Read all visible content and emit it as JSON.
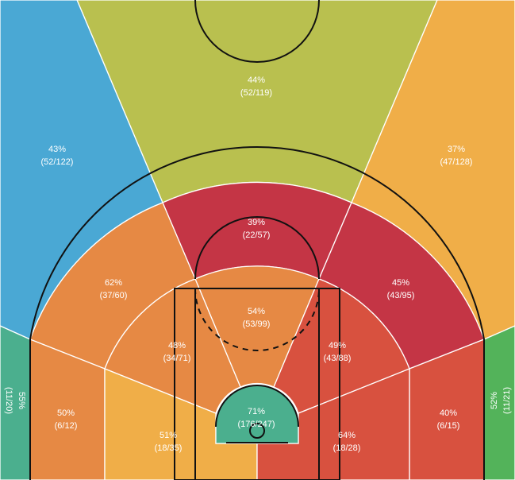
{
  "chart_data": {
    "type": "heatmap",
    "title": "",
    "zones": [
      {
        "id": "top-key",
        "pct": "44%",
        "made": 52,
        "att": 119,
        "frac": "(52/119)",
        "color": "#b9c04f"
      },
      {
        "id": "top-left-wing",
        "pct": "43%",
        "made": 52,
        "att": 122,
        "frac": "(52/122)",
        "color": "#4aa8d4"
      },
      {
        "id": "top-right-wing",
        "pct": "37%",
        "made": 47,
        "att": 128,
        "frac": "(47/128)",
        "color": "#f0ae48"
      },
      {
        "id": "left-corner-three",
        "pct": "55%",
        "made": 11,
        "att": 20,
        "frac": "(11/20)",
        "color": "#4baf8e"
      },
      {
        "id": "right-corner-three",
        "pct": "52%",
        "made": 11,
        "att": 21,
        "frac": "(11/21)",
        "color": "#53b35a"
      },
      {
        "id": "mid-top",
        "pct": "39%",
        "made": 22,
        "att": 57,
        "frac": "(22/57)",
        "color": "#c43545"
      },
      {
        "id": "mid-left-wing",
        "pct": "62%",
        "made": 37,
        "att": 60,
        "frac": "(37/60)",
        "color": "#e68944"
      },
      {
        "id": "mid-right-wing",
        "pct": "45%",
        "made": 43,
        "att": 95,
        "frac": "(43/95)",
        "color": "#c43545"
      },
      {
        "id": "paint-top",
        "pct": "54%",
        "made": 53,
        "att": 99,
        "frac": "(53/99)",
        "color": "#e68944"
      },
      {
        "id": "mid-left-elbow",
        "pct": "48%",
        "made": 34,
        "att": 71,
        "frac": "(34/71)",
        "color": "#e68944"
      },
      {
        "id": "mid-right-elbow",
        "pct": "49%",
        "made": 43,
        "att": 88,
        "frac": "(43/88)",
        "color": "#d8513f"
      },
      {
        "id": "left-baseline-long",
        "pct": "50%",
        "made": 6,
        "att": 12,
        "frac": "(6/12)",
        "color": "#e68944"
      },
      {
        "id": "right-baseline-long",
        "pct": "40%",
        "made": 6,
        "att": 15,
        "frac": "(6/15)",
        "color": "#d8513f"
      },
      {
        "id": "left-short-baseline",
        "pct": "51%",
        "made": 18,
        "att": 35,
        "frac": "(18/35)",
        "color": "#f0ae48"
      },
      {
        "id": "right-short-baseline",
        "pct": "64%",
        "made": 18,
        "att": 28,
        "frac": "(18/28)",
        "color": "#d8513f"
      },
      {
        "id": "restricted-area",
        "pct": "71%",
        "made": 176,
        "att": 247,
        "frac": "(176/247)",
        "color": "#4baf8e"
      }
    ]
  }
}
